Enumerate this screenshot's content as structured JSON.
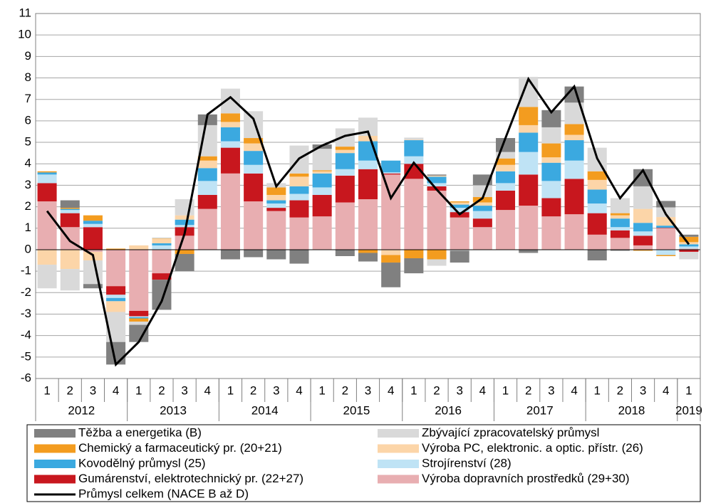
{
  "chart_data": {
    "type": "bar",
    "stacked": true,
    "categories": [
      "1",
      "2",
      "3",
      "4",
      "1",
      "2",
      "3",
      "4",
      "1",
      "2",
      "3",
      "4",
      "1",
      "2",
      "3",
      "4",
      "1",
      "2",
      "3",
      "4",
      "1",
      "2",
      "3",
      "4",
      "1",
      "2",
      "3",
      "4",
      "1"
    ],
    "category_groups": [
      {
        "label": "2012",
        "count": 4
      },
      {
        "label": "2013",
        "count": 4
      },
      {
        "label": "2014",
        "count": 4
      },
      {
        "label": "2015",
        "count": 4
      },
      {
        "label": "2016",
        "count": 4
      },
      {
        "label": "2017",
        "count": 4
      },
      {
        "label": "2018",
        "count": 4
      },
      {
        "label": "2019",
        "count": 1
      }
    ],
    "ylim": [
      -6,
      11
    ],
    "yticks": [
      -6,
      -5,
      -4,
      -3,
      -2,
      -1,
      0,
      1,
      2,
      3,
      4,
      5,
      6,
      7,
      8,
      9,
      10,
      11
    ],
    "grid": true,
    "series": [
      {
        "name": "Těžba a energetika (B)",
        "color": "#808080",
        "values": [
          0,
          0.35,
          -0.2,
          -1.05,
          -0.8,
          -1.4,
          -0.8,
          0.5,
          -0.45,
          -0.35,
          -0.45,
          -0.65,
          0.2,
          -0.3,
          -0.4,
          -1.15,
          -0.7,
          0.05,
          -0.55,
          0.5,
          0.65,
          -0.15,
          0.8,
          0.75,
          -0.5,
          -0.05,
          0.8,
          0.3,
          0.1
        ]
      },
      {
        "name": "Zbývající zpracovatelský průmysl",
        "color": "#d9d9d9",
        "values": [
          -1.1,
          -1.0,
          -1.1,
          -1.4,
          -0.15,
          0.05,
          0.75,
          1.45,
          1.15,
          1.25,
          0.2,
          1.3,
          1.0,
          0.85,
          0.85,
          0,
          0.1,
          -0.3,
          -0.05,
          0.55,
          0.3,
          1.4,
          0.75,
          1.0,
          1.1,
          0.7,
          1.05,
          0.45,
          -0.35
        ]
      },
      {
        "name": "Chemický a farmaceutický pr. (20+21)",
        "color": "#f39c1f",
        "values": [
          0.05,
          0.05,
          0.25,
          0.05,
          -0.15,
          0.02,
          -0.2,
          0.2,
          0.4,
          0.25,
          0.35,
          0.15,
          0.05,
          0.15,
          -0.15,
          -0.35,
          -0.4,
          -0.45,
          0.05,
          0.25,
          0.3,
          0.85,
          0.65,
          0.5,
          0.4,
          0.1,
          -0.05,
          -0.05,
          0.25
        ]
      },
      {
        "name": "Výroba PC, elektronic. a optic. přístr. (26)",
        "color": "#fcd5a8",
        "values": [
          -0.7,
          -0.9,
          -0.4,
          -0.5,
          0.2,
          0.2,
          0.2,
          0.35,
          0.25,
          0.35,
          0.25,
          0.45,
          0.1,
          0.15,
          0.25,
          -0.25,
          0.02,
          0.05,
          0.1,
          0.15,
          0.3,
          0.35,
          0.25,
          0.25,
          0.45,
          0.15,
          0.65,
          0.4,
          0.1
        ]
      },
      {
        "name": "Kovodělný průmysl (25)",
        "color": "#3ba9e0",
        "values": [
          0.1,
          0.05,
          0.15,
          -0.15,
          -0.05,
          0.1,
          0.25,
          0.6,
          0.65,
          0.65,
          0.15,
          0.35,
          0.65,
          0.75,
          0.9,
          0.55,
          0.75,
          0.3,
          0.15,
          0.25,
          0.55,
          0.9,
          0.85,
          0.95,
          0.65,
          0.4,
          0.4,
          0.1,
          0.1
        ]
      },
      {
        "name": "Strojírenství (28)",
        "color": "#bfe3f5",
        "values": [
          0.4,
          0.15,
          0.15,
          -0.15,
          -0.05,
          0.2,
          0.1,
          0.65,
          0.3,
          0.4,
          0.2,
          0.3,
          0.35,
          0.3,
          0.4,
          0.05,
          0.35,
          0.15,
          0.2,
          0.35,
          0.35,
          1.05,
          0.8,
          0.85,
          0.45,
          0.15,
          0.2,
          -0.25,
          0.1
        ]
      },
      {
        "name": "Gumárenství, elektrotechnický pr. (22+27)",
        "color": "#c8171e",
        "values": [
          0.85,
          0.65,
          1.05,
          -0.4,
          -0.25,
          -0.3,
          0.4,
          0.65,
          1.2,
          1.3,
          0.15,
          0.8,
          1.0,
          1.25,
          1.4,
          0.05,
          0.7,
          0.2,
          0.25,
          0.4,
          0.9,
          1.45,
          0.85,
          1.65,
          1.0,
          0.35,
          0.45,
          0.02,
          -0.1
        ]
      },
      {
        "name": "Výroba dopravních prostředků (29+30)",
        "color": "#e8aeb1",
        "values": [
          2.25,
          1.05,
          -0.1,
          -1.7,
          -2.85,
          -1.1,
          0.65,
          1.9,
          3.55,
          2.25,
          1.8,
          1.5,
          1.55,
          2.2,
          2.35,
          3.5,
          3.3,
          2.75,
          1.5,
          1.05,
          1.85,
          2.05,
          1.55,
          1.65,
          0.7,
          0.55,
          0.2,
          1.0,
          0.05
        ]
      },
      {
        "name": "Průmysl celkem (NACE B až D)",
        "type": "line",
        "color": "#000000",
        "values": [
          1.8,
          0.4,
          -0.25,
          -5.35,
          -4.3,
          -2.4,
          0.75,
          6.3,
          7.1,
          6.1,
          2.95,
          4.25,
          4.85,
          5.3,
          5.5,
          2.4,
          4.05,
          2.8,
          1.65,
          2.4,
          5.2,
          7.95,
          6.4,
          7.6,
          4.25,
          2.4,
          3.7,
          1.65,
          0.25
        ]
      }
    ]
  }
}
